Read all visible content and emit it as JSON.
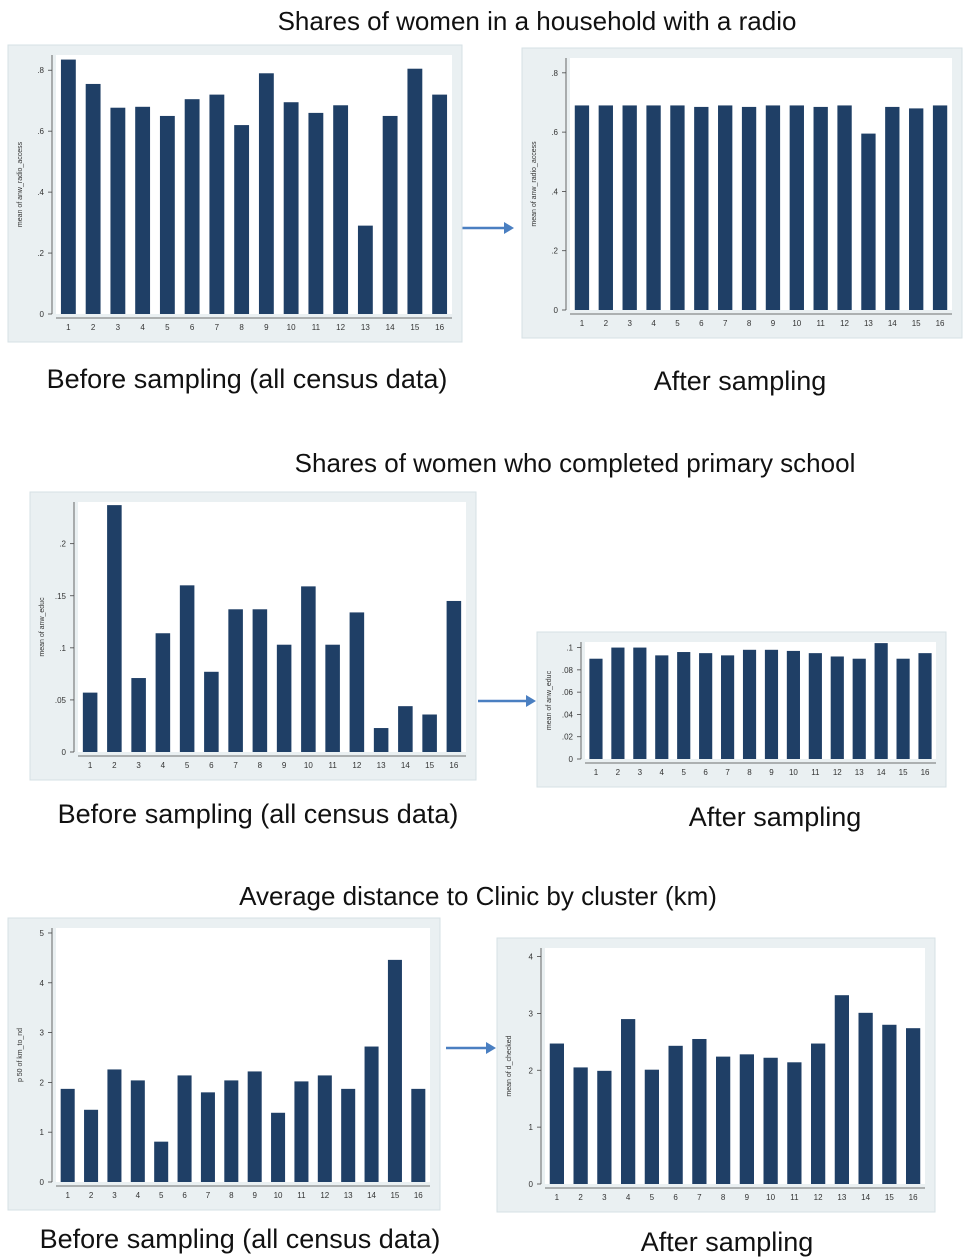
{
  "sections": [
    {
      "title": "Shares of women in a household with a radio"
    },
    {
      "title": "Shares of women who completed primary school"
    },
    {
      "title": "Average distance to Clinic by cluster (km)"
    }
  ],
  "chart_data": [
    {
      "type": "bar",
      "caption": "Before sampling (all census data)",
      "y_label": "mean of anw_radio_access",
      "color": "#1f3f66",
      "categories": [
        "1",
        "2",
        "3",
        "4",
        "5",
        "6",
        "7",
        "8",
        "9",
        "10",
        "11",
        "12",
        "13",
        "14",
        "15",
        "16"
      ],
      "values": [
        0.835,
        0.755,
        0.677,
        0.68,
        0.65,
        0.705,
        0.72,
        0.62,
        0.79,
        0.695,
        0.66,
        0.685,
        0.29,
        0.65,
        0.805,
        0.72
      ],
      "ylim": [
        0,
        0.85
      ],
      "yticks": [
        0,
        {
          "value": 0.2,
          "label": ".2"
        },
        {
          "value": 0.4,
          "label": ".4"
        },
        {
          "value": 0.6,
          "label": ".6"
        },
        {
          "value": 0.8,
          "label": ".8"
        }
      ]
    },
    {
      "type": "bar",
      "caption": "After sampling",
      "y_label": "mean of anw_radio_access",
      "color": "#1f3f66",
      "categories": [
        "1",
        "2",
        "3",
        "4",
        "5",
        "6",
        "7",
        "8",
        "9",
        "10",
        "11",
        "12",
        "13",
        "14",
        "15",
        "16"
      ],
      "values": [
        0.69,
        0.69,
        0.69,
        0.69,
        0.69,
        0.685,
        0.69,
        0.685,
        0.69,
        0.69,
        0.685,
        0.69,
        0.595,
        0.685,
        0.68,
        0.69
      ],
      "ylim": [
        0,
        0.85
      ],
      "yticks": [
        0,
        {
          "value": 0.2,
          "label": ".2"
        },
        {
          "value": 0.4,
          "label": ".4"
        },
        {
          "value": 0.6,
          "label": ".6"
        },
        {
          "value": 0.8,
          "label": ".8"
        }
      ]
    },
    {
      "type": "bar",
      "caption": "Before sampling (all census data)",
      "y_label": "mean of anw_educ",
      "color": "#1f3f66",
      "categories": [
        "1",
        "2",
        "3",
        "4",
        "5",
        "6",
        "7",
        "8",
        "9",
        "10",
        "11",
        "12",
        "13",
        "14",
        "15",
        "16"
      ],
      "values": [
        0.057,
        0.237,
        0.071,
        0.114,
        0.16,
        0.077,
        0.137,
        0.137,
        0.103,
        0.159,
        0.103,
        0.134,
        0.023,
        0.044,
        0.036,
        0.145
      ],
      "ylim": [
        0,
        0.24
      ],
      "yticks": [
        0,
        {
          "value": 0.05,
          "label": ".05"
        },
        {
          "value": 0.1,
          "label": ".1"
        },
        {
          "value": 0.15,
          "label": ".15"
        },
        {
          "value": 0.2,
          "label": ".2"
        }
      ]
    },
    {
      "type": "bar",
      "caption": "After sampling",
      "y_label": "mean of anw_educ",
      "color": "#1f3f66",
      "categories": [
        "1",
        "2",
        "3",
        "4",
        "5",
        "6",
        "7",
        "8",
        "9",
        "10",
        "11",
        "12",
        "13",
        "14",
        "15",
        "16"
      ],
      "values": [
        0.09,
        0.1,
        0.1,
        0.093,
        0.096,
        0.095,
        0.093,
        0.098,
        0.098,
        0.097,
        0.095,
        0.092,
        0.09,
        0.104,
        0.09,
        0.095
      ],
      "ylim": [
        0,
        0.105
      ],
      "yticks": [
        0,
        {
          "value": 0.02,
          "label": ".02"
        },
        {
          "value": 0.04,
          "label": ".04"
        },
        {
          "value": 0.06,
          "label": ".06"
        },
        {
          "value": 0.08,
          "label": ".08"
        },
        {
          "value": 0.1,
          "label": ".1"
        }
      ]
    },
    {
      "type": "bar",
      "caption": "Before sampling (all census data)",
      "y_label": "p 50 of km_to_nd",
      "color": "#1f3f66",
      "categories": [
        "1",
        "2",
        "3",
        "4",
        "5",
        "6",
        "7",
        "8",
        "9",
        "10",
        "11",
        "12",
        "13",
        "14",
        "15",
        "16"
      ],
      "values": [
        1.87,
        1.45,
        2.26,
        2.04,
        0.81,
        2.14,
        1.8,
        2.04,
        2.22,
        1.39,
        2.02,
        2.14,
        1.87,
        2.72,
        4.46,
        1.87
      ],
      "ylim": [
        0,
        5.1
      ],
      "yticks": [
        0,
        1,
        2,
        3,
        4,
        5
      ]
    },
    {
      "type": "bar",
      "caption": "After sampling",
      "y_label": "mean of d_checked",
      "color": "#1f3f66",
      "categories": [
        "1",
        "2",
        "3",
        "4",
        "5",
        "6",
        "7",
        "8",
        "9",
        "10",
        "11",
        "12",
        "13",
        "14",
        "15",
        "16"
      ],
      "values": [
        2.47,
        2.05,
        1.99,
        2.9,
        2.01,
        2.43,
        2.55,
        2.24,
        2.28,
        2.22,
        2.14,
        2.47,
        3.32,
        3.01,
        2.8,
        2.74
      ],
      "ylim": [
        0,
        4.15
      ],
      "yticks": [
        0,
        1,
        2,
        3,
        4
      ]
    }
  ]
}
